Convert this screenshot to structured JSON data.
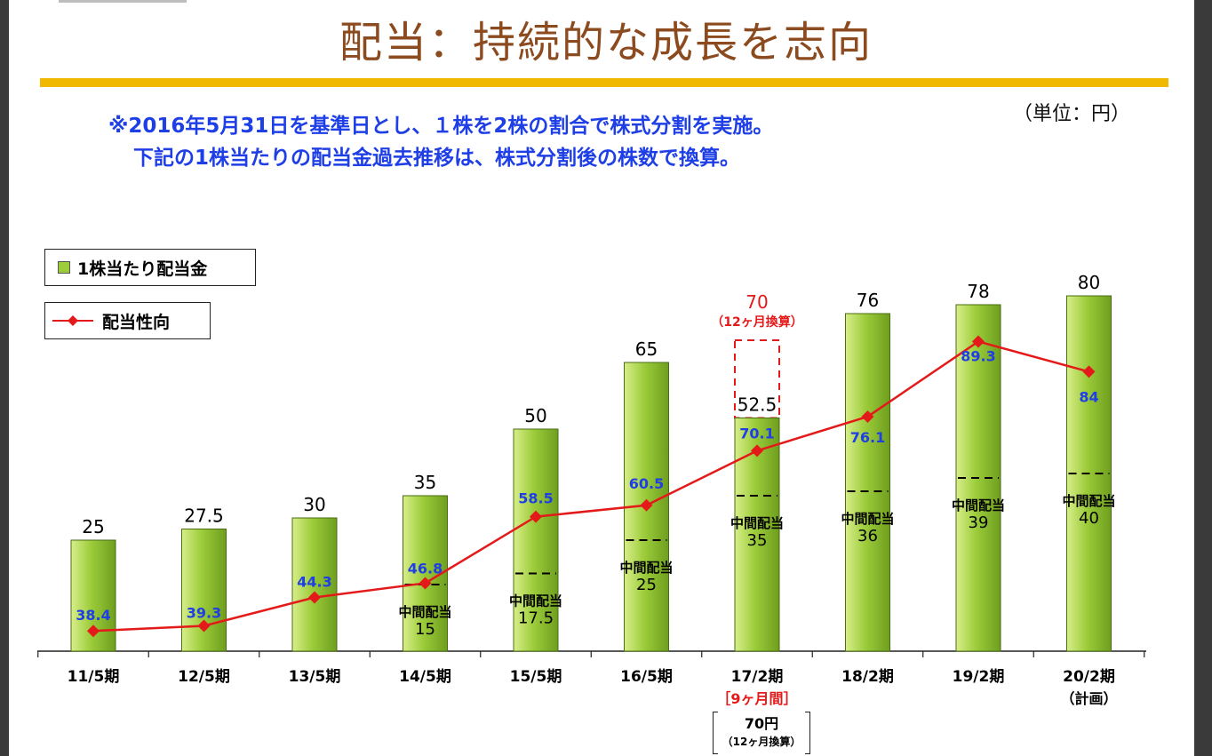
{
  "title": "配当：持続的な成長を志向",
  "unit": "（単位：円）",
  "notes": [
    "※2016年5月31日を基準日とし、１株を2株の割合で株式分割を実施。",
    "下記の1株当たりの配当金過去推移は、株式分割後の株数で換算。"
  ],
  "legend": {
    "bars": "1株当たり配当金",
    "line": "配当性向"
  },
  "colors": {
    "bar": "#9ccc3a",
    "line": "#e41a1a",
    "ratio_label": "#1f3fe6",
    "title": "#8c4a1f",
    "rule": "#f0b800"
  },
  "chart_data": {
    "type": "bar",
    "categories": [
      "11/5期",
      "12/5期",
      "13/5期",
      "14/5期",
      "15/5期",
      "16/5期",
      "17/2期",
      "18/2期",
      "19/2期",
      "20/2期"
    ],
    "category_notes": [
      "",
      "",
      "",
      "",
      "",
      "",
      "［9ヶ月間］",
      "",
      "",
      "（計画）"
    ],
    "series": [
      {
        "name": "1株当たり配当金",
        "type": "bar",
        "values": [
          25,
          27.5,
          30,
          35,
          50,
          65,
          52.5,
          76,
          78,
          80
        ],
        "value_labels": [
          "25",
          "27.5",
          "30",
          "35",
          "50",
          "65",
          "52.5",
          "76",
          "78",
          "80"
        ]
      },
      {
        "name": "配当性向",
        "type": "line",
        "values": [
          38.4,
          39.3,
          44.3,
          46.8,
          58.5,
          60.5,
          70.1,
          76.1,
          89.3,
          84
        ],
        "value_labels": [
          "38.4",
          "39.3",
          "44.3",
          "46.8",
          "58.5",
          "60.5",
          "70.1",
          "76.1",
          "89.3",
          "84"
        ]
      }
    ],
    "interim_dividends": [
      {
        "index": 3,
        "value": 15,
        "label": "中間配当",
        "value_label": "15"
      },
      {
        "index": 4,
        "value": 17.5,
        "label": "中間配当",
        "value_label": "17.5"
      },
      {
        "index": 5,
        "value": 25,
        "label": "中間配当",
        "value_label": "25"
      },
      {
        "index": 6,
        "value": 35,
        "label": "中間配当",
        "value_label": "35"
      },
      {
        "index": 7,
        "value": 36,
        "label": "中間配当",
        "value_label": "36"
      },
      {
        "index": 8,
        "value": 39,
        "label": "中間配当",
        "value_label": "39"
      },
      {
        "index": 9,
        "value": 40,
        "label": "中間配当",
        "value_label": "40"
      }
    ],
    "annualized": {
      "index": 6,
      "value": 70,
      "label": "70",
      "sublabel": "（12ヶ月換算）"
    }
  },
  "side_note": {
    "main": "70円",
    "sub": "（12ヶ月換算）"
  }
}
